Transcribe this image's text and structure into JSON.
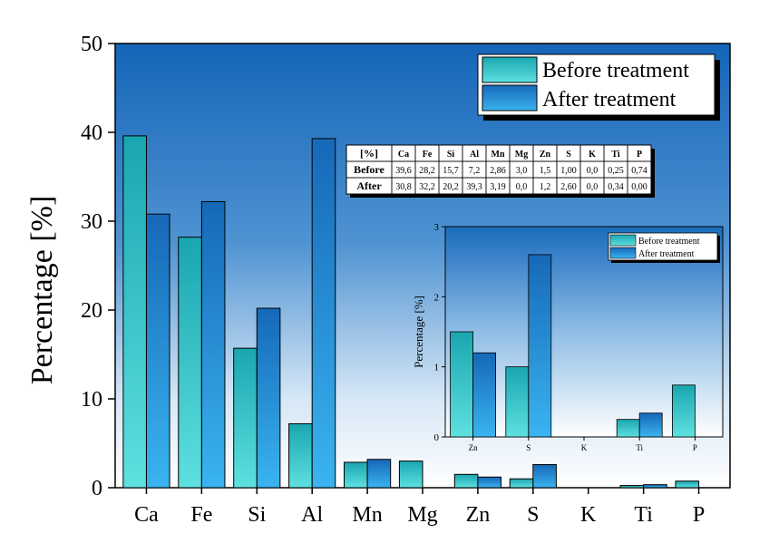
{
  "chart_data": {
    "type": "bar",
    "categories": [
      "Ca",
      "Fe",
      "Si",
      "Al",
      "Mn",
      "Mg",
      "Zn",
      "S",
      "K",
      "Ti",
      "P"
    ],
    "series": [
      {
        "name": "Before treatment",
        "values": [
          39.6,
          28.2,
          15.7,
          7.2,
          2.86,
          3.0,
          1.5,
          1.0,
          0.0,
          0.25,
          0.74
        ]
      },
      {
        "name": "After treatment",
        "values": [
          30.8,
          32.2,
          20.2,
          39.3,
          3.19,
          0.0,
          1.2,
          2.6,
          0.0,
          0.34,
          0.0
        ]
      }
    ],
    "ylabel": "Percentage [%]",
    "xlabel": "",
    "ylim": [
      0,
      50
    ],
    "yticks": [
      "0",
      "10",
      "20",
      "30",
      "40",
      "50"
    ],
    "legend_position": "top-right",
    "colors": {
      "before_light": "#5ee0e0",
      "before_dark": "#1aa6b0",
      "after_light": "#3ab4f0",
      "after_dark": "#1668b8",
      "background_top": "#1565b8",
      "background_bottom": "#ffffff"
    },
    "table": {
      "header": [
        "[%]",
        "Ca",
        "Fe",
        "Si",
        "Al",
        "Mn",
        "Mg",
        "Zn",
        "S",
        "K",
        "Ti",
        "P"
      ],
      "rows": [
        [
          "Before",
          "39,6",
          "28,2",
          "15,7",
          "7,2",
          "2,86",
          "3,0",
          "1,5",
          "1,00",
          "0,0",
          "0,25",
          "0,74"
        ],
        [
          "After",
          "30,8",
          "32,2",
          "20,2",
          "39,3",
          "3,19",
          "0,0",
          "1,2",
          "2,60",
          "0,0",
          "0,34",
          "0,00"
        ]
      ]
    },
    "inset": {
      "categories": [
        "Zn",
        "S",
        "K",
        "Ti",
        "P"
      ],
      "series": [
        {
          "name": "Before treatment",
          "values": [
            1.5,
            1.0,
            0.0,
            0.25,
            0.74
          ]
        },
        {
          "name": "After treatment",
          "values": [
            1.2,
            2.6,
            0.0,
            0.34,
            0.0
          ]
        }
      ],
      "ylabel": "Percentage [%]",
      "ylim": [
        0,
        3
      ],
      "yticks": [
        "0",
        "1",
        "2",
        "3"
      ]
    }
  }
}
